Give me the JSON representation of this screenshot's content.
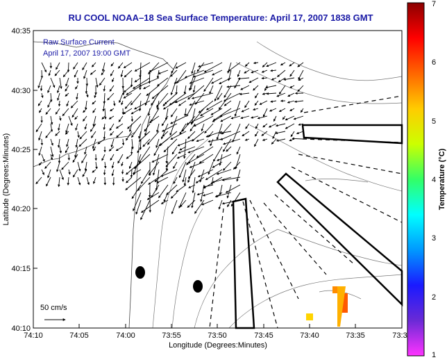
{
  "title": "RU COOL  NOAA–18  Sea Surface Temperature:  April 17, 2007 1838 GMT",
  "legend": {
    "line1": "Raw Surface Current",
    "line2": "April 17, 2007 19:00 GMT"
  },
  "scale_arrow_label": "50 cm/s",
  "x_axis": {
    "label": "Longitude (Degrees:Minutes)",
    "ticks": [
      "74:10",
      "74:05",
      "74:00",
      "73:55",
      "73:50",
      "73:45",
      "73:40",
      "73:35",
      "73:3"
    ]
  },
  "y_axis": {
    "label": "Latitude (Degrees:Minutes)",
    "ticks": [
      "40:35",
      "40:30",
      "40:25",
      "40:20",
      "40:15",
      "40:10"
    ]
  },
  "colorbar": {
    "label": "Temperature (°C)",
    "ticks": [
      "7",
      "6",
      "5",
      "4",
      "3",
      "2",
      "1"
    ],
    "min": 1,
    "max": 7,
    "colors": [
      "#ff33ff",
      "#6a2ad6",
      "#1a1aff",
      "#0099ff",
      "#00ffff",
      "#33ff66",
      "#ccff00",
      "#ffcc00",
      "#ff6600",
      "#ff0000",
      "#8b0000"
    ]
  },
  "sst_patches": [
    {
      "lon": "73:38",
      "lat": "40:11",
      "color": "#ffd400"
    },
    {
      "lon": "73:36",
      "lat": "40:13",
      "color": "#ff8c00"
    },
    {
      "lon": "73:35",
      "lat": "40:12",
      "color": "#ff5a00"
    }
  ]
}
